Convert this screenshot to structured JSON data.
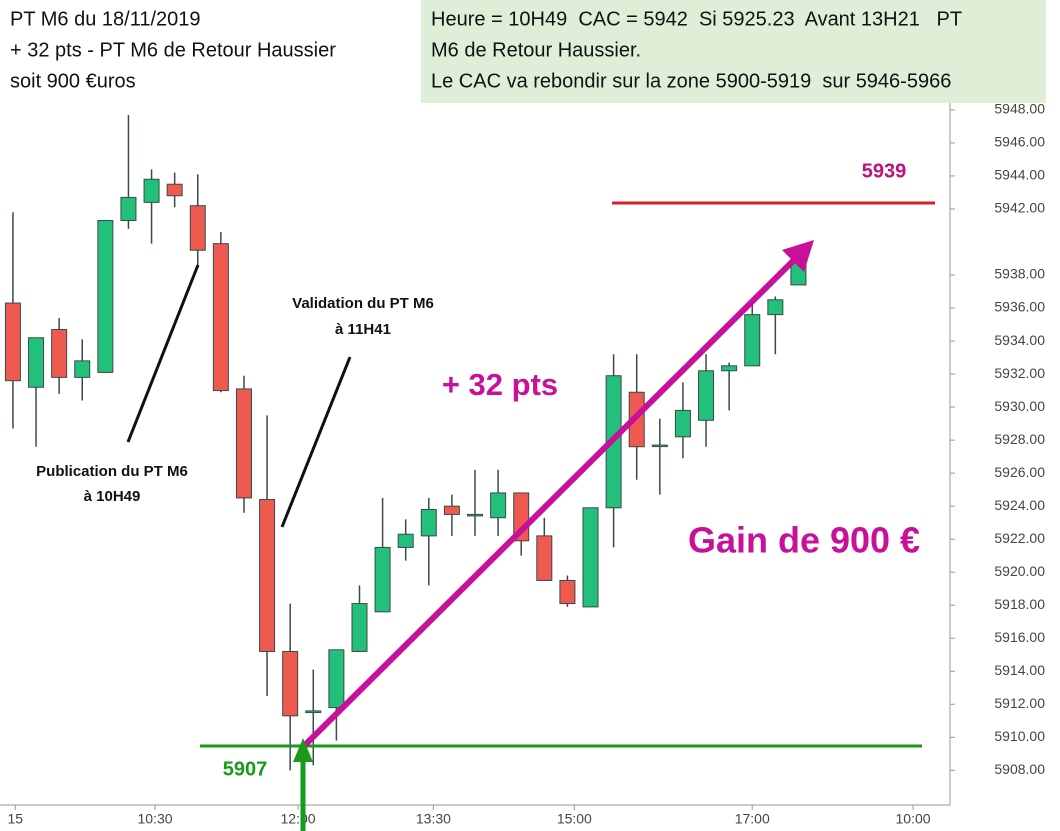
{
  "header": {
    "left_lines": [
      "PT M6 du 18/11/2019",
      "+ 32 pts - PT M6 de Retour Haussier",
      "soit 900 €uros"
    ],
    "right_lines": [
      "Heure = 10H49  CAC = 5942  Si 5925.23  Avant 13H21   PT",
      "M6 de Retour Haussier.",
      "Le CAC va rebondir sur la zone 5900-5919  sur 5946-5966"
    ]
  },
  "chart_data": {
    "type": "candlestick",
    "x": [
      0,
      1,
      2,
      3,
      4,
      5,
      6,
      7,
      8,
      9,
      10,
      11,
      12,
      13,
      14,
      15,
      16,
      17,
      18,
      19,
      20,
      21,
      22,
      23,
      24,
      25,
      26,
      27,
      28,
      29,
      30,
      31,
      32,
      33,
      34
    ],
    "open": [
      5936.3,
      5931.2,
      5934.7,
      5931.8,
      5932.1,
      5941.3,
      5942.4,
      5943.5,
      5942.2,
      5939.9,
      5931.1,
      5924.4,
      5915.2,
      5911.5,
      5911.8,
      5915.2,
      5917.6,
      5921.5,
      5922.2,
      5924.0,
      5923.5,
      5923.3,
      5924.8,
      5922.2,
      5919.5,
      5917.9,
      5923.9,
      5930.9,
      5927.7,
      5928.2,
      5929.2,
      5932.2,
      5932.5,
      5935.6,
      5937.4
    ],
    "high": [
      5941.8,
      5934.2,
      5935.4,
      5934.1,
      5941.3,
      5947.7,
      5944.4,
      5944.2,
      5944.1,
      5940.6,
      5931.9,
      5929.5,
      5918.1,
      5914.1,
      5915.3,
      5919.2,
      5924.5,
      5923.2,
      5924.5,
      5924.7,
      5926.2,
      5926.2,
      5924.8,
      5923.3,
      5919.8,
      5923.9,
      5933.2,
      5933.2,
      5929.3,
      5931.5,
      5933.2,
      5932.7,
      5936.5,
      5936.7,
      5939.3
    ],
    "low": [
      5928.7,
      5927.6,
      5930.8,
      5930.4,
      5932.1,
      5940.8,
      5939.9,
      5942.1,
      5938.6,
      5930.9,
      5923.6,
      5912.5,
      5908.0,
      5908.3,
      5909.8,
      5915.2,
      5917.6,
      5920.7,
      5919.2,
      5922.2,
      5922.2,
      5922.2,
      5921.0,
      5919.5,
      5917.9,
      5917.9,
      5921.5,
      5925.6,
      5924.7,
      5926.9,
      5927.6,
      5929.8,
      5932.5,
      5933.2,
      5937.4
    ],
    "close": [
      5931.6,
      5934.2,
      5931.8,
      5932.8,
      5941.3,
      5942.7,
      5943.8,
      5942.8,
      5939.5,
      5931.0,
      5924.5,
      5915.2,
      5911.3,
      5911.6,
      5915.3,
      5918.1,
      5921.5,
      5922.3,
      5923.8,
      5923.5,
      5923.5,
      5924.8,
      5921.9,
      5919.5,
      5918.1,
      5923.9,
      5931.9,
      5927.6,
      5927.7,
      5929.8,
      5932.2,
      5932.5,
      5935.6,
      5936.5,
      5939.3
    ],
    "up_color": "#22c07a",
    "down_color": "#ef5a50",
    "ylim": [
      5905.9,
      5948.6
    ],
    "yticks": [
      {
        "value": 5908,
        "label": "5908.00"
      },
      {
        "value": 5910,
        "label": "5910.00"
      },
      {
        "value": 5912,
        "label": "5912.00"
      },
      {
        "value": 5914,
        "label": "5914.00"
      },
      {
        "value": 5916,
        "label": "5916.00"
      },
      {
        "value": 5918,
        "label": "5918.00"
      },
      {
        "value": 5920,
        "label": "5920.00"
      },
      {
        "value": 5922,
        "label": "5922.00"
      },
      {
        "value": 5924,
        "label": "5924.00"
      },
      {
        "value": 5926,
        "label": "5926.00"
      },
      {
        "value": 5928,
        "label": "5928.00"
      },
      {
        "value": 5930,
        "label": "5930.00"
      },
      {
        "value": 5932,
        "label": "5932.00"
      },
      {
        "value": 5934,
        "label": "5934.00"
      },
      {
        "value": 5936,
        "label": "5936.00"
      },
      {
        "value": 5938,
        "label": "5938.00"
      },
      {
        "value": 5942,
        "label": "5942.00"
      },
      {
        "value": 5944,
        "label": "5944.00"
      },
      {
        "value": 5946,
        "label": "5946.00"
      },
      {
        "value": 5948,
        "label": "5948.00"
      }
    ],
    "xlim": [
      -0.56,
      40.56
    ],
    "xticks": [
      {
        "value": 0.1,
        "label": "15"
      },
      {
        "value": 6.15,
        "label": "10:30"
      },
      {
        "value": 12.34,
        "label": "12:00"
      },
      {
        "value": 18.2,
        "label": "13:30"
      },
      {
        "value": 24.3,
        "label": "15:00"
      },
      {
        "value": 32,
        "label": "17:00"
      },
      {
        "value": 38.96,
        "label": "10:00"
      }
    ],
    "annotations": {
      "validation": [
        "Validation du PT M6",
        "à 11H41"
      ],
      "publication": [
        "Publication du PT M6",
        "à 10H49"
      ],
      "gain_pts": "+ 32 pts",
      "gain_eur": "Gain de 900 €",
      "target": "5939",
      "support": "5907"
    }
  }
}
